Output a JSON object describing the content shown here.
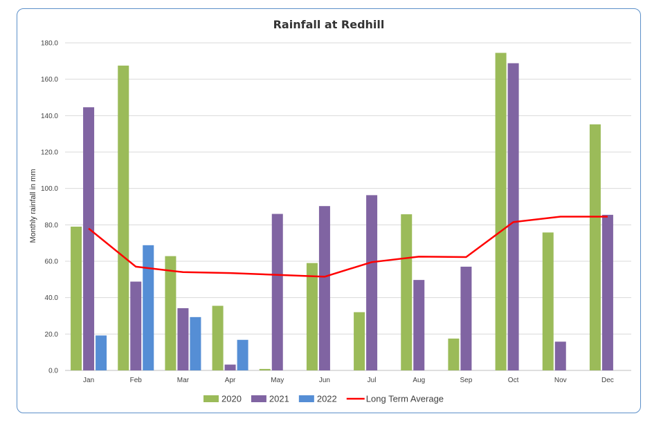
{
  "chart_data": {
    "type": "bar",
    "title": "Rainfall at Redhill",
    "xlabel": "",
    "ylabel": "Monthly rainfall in mm",
    "ylim": [
      0,
      180
    ],
    "yticks": [
      "0.0",
      "20.0",
      "40.0",
      "60.0",
      "80.0",
      "100.0",
      "120.0",
      "140.0",
      "160.0",
      "180.0"
    ],
    "grid": true,
    "legend_position": "bottom",
    "categories": [
      "Jan",
      "Feb",
      "Mar",
      "Apr",
      "May",
      "Jun",
      "Jul",
      "Aug",
      "Sep",
      "Oct",
      "Nov",
      "Dec"
    ],
    "series": [
      {
        "name": "2020",
        "color": "#9bbb59",
        "type": "bar",
        "values": [
          79,
          167.5,
          62.8,
          35.5,
          0.8,
          59,
          32,
          85.8,
          17.5,
          174.5,
          75.8,
          135.2
        ]
      },
      {
        "name": "2021",
        "color": "#8064a2",
        "type": "bar",
        "values": [
          144.6,
          48.8,
          34.2,
          3.2,
          86,
          90.3,
          96.3,
          49.7,
          57,
          168.8,
          15.8,
          85.5
        ]
      },
      {
        "name": "2022",
        "color": "#558ed5",
        "type": "bar",
        "values": [
          19.2,
          68.8,
          29.3,
          16.8,
          null,
          null,
          null,
          null,
          null,
          null,
          null,
          null
        ]
      },
      {
        "name": "Long Term Average",
        "color": "#ff0000",
        "type": "line",
        "values": [
          78,
          57,
          54,
          53.5,
          52.5,
          51.5,
          59.5,
          62.5,
          62.3,
          81.5,
          84.5,
          84.5
        ]
      }
    ]
  }
}
